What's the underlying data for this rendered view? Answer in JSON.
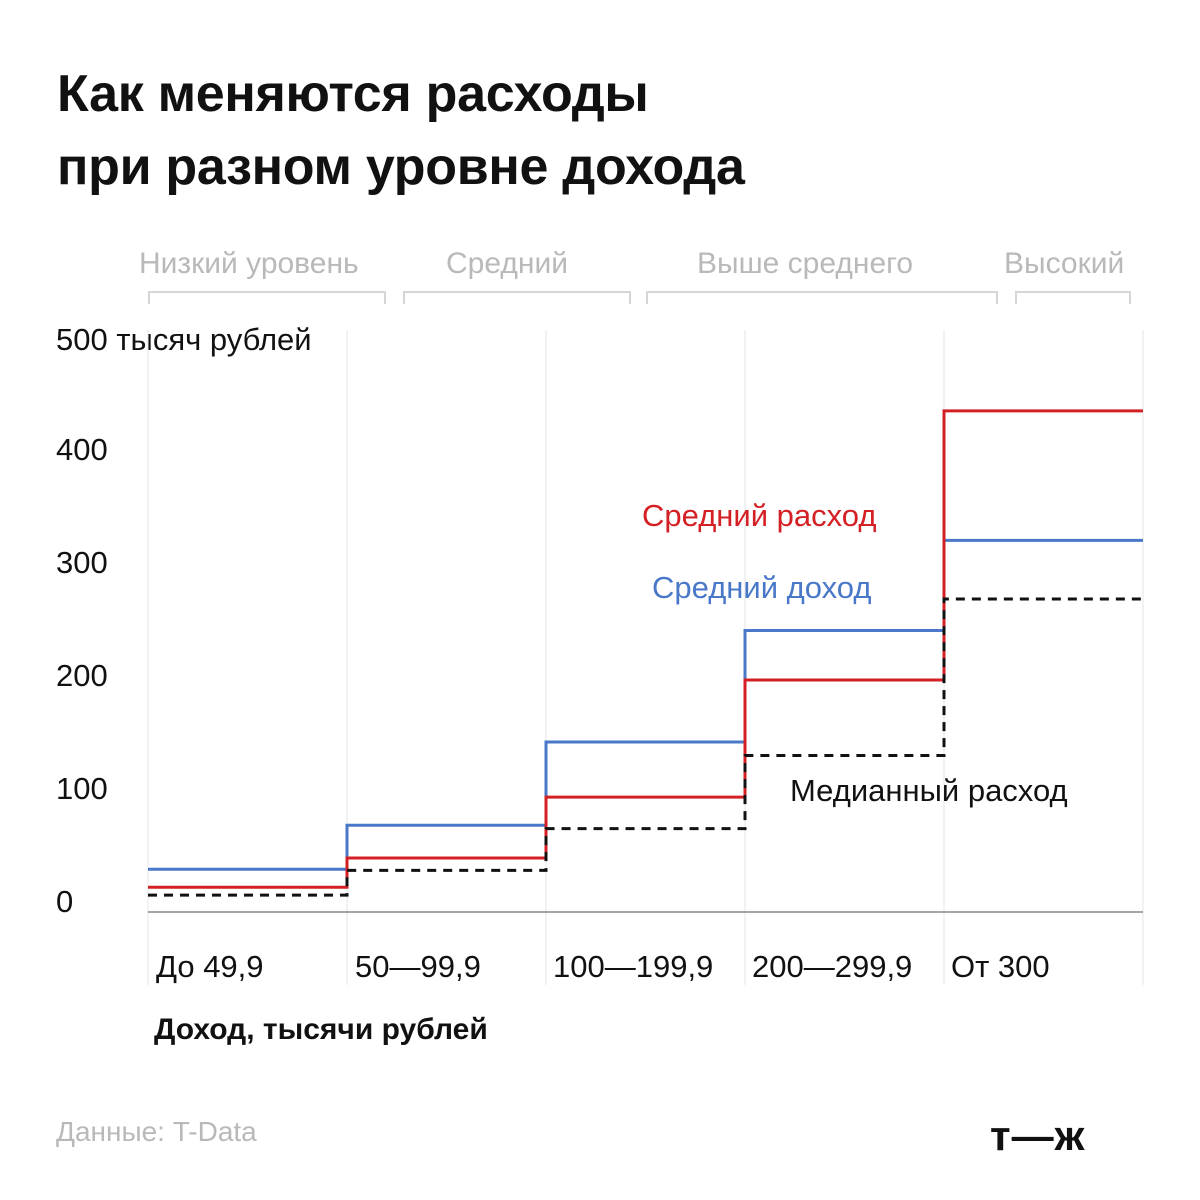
{
  "title": {
    "line1": "Как меняются расходы",
    "line2": "при разном уровне дохода"
  },
  "bands": [
    {
      "label": "Низкий уровень"
    },
    {
      "label": "Средний"
    },
    {
      "label": "Выше среднего"
    },
    {
      "label": "Высокий"
    }
  ],
  "source": "Данные: T-Data",
  "logo": "т—ж",
  "chart_data": {
    "type": "line",
    "step": true,
    "categories": [
      "До 49,9",
      "50—99,9",
      "100—199,9",
      "200—299,9",
      "От 300"
    ],
    "ylabel": "500 тысяч рублей",
    "xlabel": "Доход, тысячи рублей",
    "yticks": [
      "0",
      "100",
      "200",
      "300",
      "400"
    ],
    "ylim": [
      0,
      500
    ],
    "grid": "vertical",
    "series": [
      {
        "name": "Средний доход",
        "color": "#4a78c8",
        "style": "solid",
        "values": [
          38,
          77,
          151,
          250,
          330
        ]
      },
      {
        "name": "Средний расход",
        "color": "#d42024",
        "style": "solid",
        "values": [
          22,
          48,
          102,
          206,
          445
        ]
      },
      {
        "name": "Медианный расход",
        "color": "#111111",
        "style": "dashed",
        "values": [
          15,
          37,
          74,
          139,
          278
        ]
      }
    ]
  }
}
